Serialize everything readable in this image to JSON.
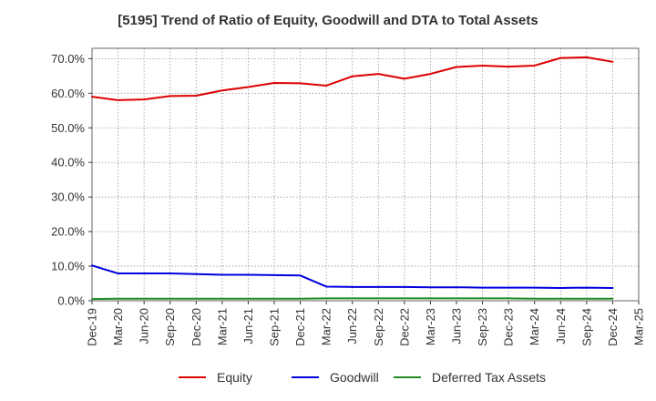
{
  "chart_data": {
    "type": "line",
    "title": "[5195]  Trend of Ratio of Equity, Goodwill and DTA to Total Assets",
    "xlabel": "",
    "ylabel": "",
    "categories": [
      "Dec-19",
      "Mar-20",
      "Jun-20",
      "Sep-20",
      "Dec-20",
      "Mar-21",
      "Jun-21",
      "Sep-21",
      "Dec-21",
      "Mar-22",
      "Jun-22",
      "Sep-22",
      "Dec-22",
      "Mar-23",
      "Jun-23",
      "Sep-23",
      "Dec-23",
      "Mar-24",
      "Jun-24",
      "Sep-24",
      "Dec-24",
      "Mar-25"
    ],
    "y_ticks": [
      "0.0%",
      "10.0%",
      "20.0%",
      "30.0%",
      "40.0%",
      "50.0%",
      "60.0%",
      "70.0%"
    ],
    "y_tick_values": [
      0,
      10,
      20,
      30,
      40,
      50,
      60,
      70
    ],
    "ylim": [
      0,
      73
    ],
    "grid": true,
    "legend_position": "bottom",
    "series": [
      {
        "name": "Equity",
        "color": "#dd0000",
        "values": [
          59.0,
          58.0,
          58.2,
          59.2,
          59.3,
          60.8,
          61.8,
          63.0,
          62.9,
          62.2,
          64.9,
          65.6,
          64.2,
          65.6,
          67.6,
          68.0,
          67.7,
          68.0,
          70.2,
          70.4,
          69.1,
          null
        ]
      },
      {
        "name": "Goodwill",
        "color": "#0000dd",
        "values": [
          10.2,
          7.9,
          7.9,
          7.9,
          7.7,
          7.5,
          7.5,
          7.4,
          7.3,
          4.1,
          4.0,
          4.0,
          4.0,
          3.9,
          3.9,
          3.8,
          3.8,
          3.8,
          3.7,
          3.8,
          3.7,
          null
        ]
      },
      {
        "name": "Deferred Tax Assets",
        "color": "#228b22",
        "values": [
          0.5,
          0.6,
          0.6,
          0.6,
          0.6,
          0.6,
          0.6,
          0.6,
          0.6,
          0.7,
          0.7,
          0.7,
          0.7,
          0.7,
          0.7,
          0.7,
          0.7,
          0.6,
          0.6,
          0.6,
          0.6,
          null
        ]
      }
    ]
  }
}
